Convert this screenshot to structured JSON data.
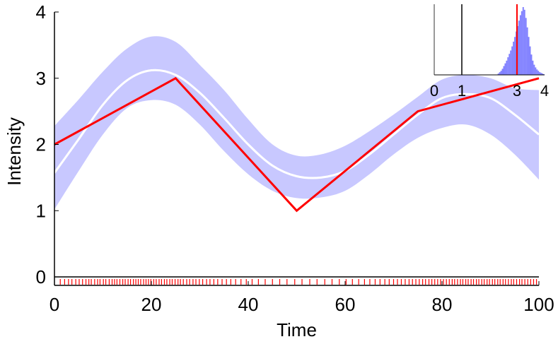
{
  "chart_data": [
    {
      "type": "line",
      "title": "",
      "xlabel": "Time",
      "ylabel": "Intensity",
      "xlim": [
        0,
        100
      ],
      "ylim": [
        0,
        4
      ],
      "xticks": [
        "0",
        "20",
        "40",
        "60",
        "80",
        "100"
      ],
      "yticks": [
        "0",
        "1",
        "2",
        "3",
        "4"
      ],
      "grid": false,
      "colors": {
        "band": "#c8c8ff",
        "mean": "#ffffff",
        "truth": "#ff0000",
        "events": "#ff0000"
      },
      "series": [
        {
          "role": "truth",
          "x": [
            0,
            25,
            50,
            75,
            100
          ],
          "y": [
            2.0,
            3.0,
            1.0,
            2.5,
            3.0
          ]
        },
        {
          "role": "posterior-mean",
          "x": [
            0,
            5,
            10,
            15,
            20,
            25,
            30,
            35,
            40,
            45,
            50,
            55,
            60,
            65,
            70,
            75,
            80,
            85,
            90,
            95,
            100
          ],
          "y": [
            1.57,
            2.08,
            2.6,
            2.97,
            3.12,
            3.05,
            2.78,
            2.4,
            2.0,
            1.68,
            1.52,
            1.5,
            1.6,
            1.85,
            2.15,
            2.45,
            2.7,
            2.76,
            2.7,
            2.45,
            2.15
          ]
        },
        {
          "role": "credible-band",
          "x": [
            0,
            5,
            10,
            15,
            20,
            25,
            30,
            35,
            40,
            45,
            50,
            55,
            60,
            65,
            70,
            75,
            80,
            85,
            90,
            95,
            100
          ],
          "lower": [
            1.02,
            1.6,
            2.15,
            2.55,
            2.67,
            2.6,
            2.3,
            1.9,
            1.55,
            1.3,
            1.19,
            1.2,
            1.3,
            1.55,
            1.85,
            2.1,
            2.25,
            2.3,
            2.15,
            1.85,
            1.47
          ],
          "upper": [
            2.28,
            2.68,
            3.1,
            3.45,
            3.63,
            3.55,
            3.2,
            2.82,
            2.38,
            2.0,
            1.83,
            1.85,
            1.98,
            2.2,
            2.45,
            2.72,
            2.98,
            3.05,
            3.0,
            2.85,
            2.82
          ]
        }
      ],
      "events": [
        1.2,
        2.1,
        2.9,
        3.6,
        4.4,
        5.1,
        5.8,
        6.5,
        7.1,
        7.6,
        8.3,
        8.9,
        9.4,
        10.1,
        10.6,
        11.3,
        11.9,
        12.4,
        12.9,
        13.5,
        14.1,
        14.6,
        15.2,
        15.7,
        16.3,
        16.8,
        17.3,
        17.8,
        18.4,
        18.9,
        19.4,
        19.9,
        20.5,
        21.0,
        21.6,
        22.1,
        22.7,
        23.2,
        23.8,
        24.3,
        24.9,
        25.5,
        26.0,
        26.6,
        27.3,
        27.9,
        28.6,
        29.2,
        29.9,
        30.6,
        31.4,
        32.1,
        32.9,
        33.7,
        34.6,
        35.5,
        36.4,
        37.4,
        38.5,
        39.6,
        40.8,
        42.1,
        43.5,
        45.0,
        46.5,
        48.0,
        49.6,
        51.1,
        52.7,
        54.2,
        55.8,
        57.3,
        58.8,
        60.2,
        61.5,
        62.8,
        64.0,
        65.1,
        66.2,
        67.2,
        68.2,
        69.1,
        70.0,
        70.8,
        71.6,
        72.4,
        73.2,
        73.9,
        74.6,
        75.3,
        76.0,
        76.6,
        77.3,
        77.9,
        78.5,
        79.1,
        79.7,
        80.3,
        80.9,
        81.5,
        82.1,
        82.6,
        83.2,
        83.8,
        84.3,
        84.9,
        85.4,
        86.0,
        86.5,
        87.1,
        87.6,
        88.2,
        88.7,
        89.3,
        89.8,
        90.4,
        90.9,
        91.5,
        92.0,
        92.6,
        93.1,
        93.7,
        94.3,
        94.8,
        95.4,
        96.0,
        96.5,
        97.1,
        97.7,
        98.3,
        98.9,
        99.5
      ]
    },
    {
      "type": "bar",
      "role": "inset-histogram",
      "xlim": [
        0,
        4
      ],
      "xticks": [
        "0",
        "1",
        "3",
        "4"
      ],
      "reference_line_x": 1,
      "true_value_x": 3,
      "colors": {
        "bars": "#8080ff",
        "reference": "#000000",
        "true_value": "#ff0000"
      },
      "bins_x": [
        2.3,
        2.35,
        2.4,
        2.45,
        2.5,
        2.55,
        2.6,
        2.65,
        2.7,
        2.75,
        2.8,
        2.85,
        2.9,
        2.95,
        3.0,
        3.05,
        3.1,
        3.15,
        3.2,
        3.25,
        3.3,
        3.35,
        3.4,
        3.45,
        3.5,
        3.55,
        3.6,
        3.65,
        3.7,
        3.75,
        3.8,
        3.85,
        3.9,
        3.95
      ],
      "counts": [
        2,
        4,
        6,
        9,
        13,
        17,
        21,
        26,
        31,
        36,
        42,
        49,
        56,
        64,
        72,
        80,
        88,
        94,
        100,
        96,
        84,
        70,
        56,
        42,
        30,
        21,
        15,
        11,
        8,
        6,
        4,
        3,
        2,
        1
      ]
    }
  ]
}
